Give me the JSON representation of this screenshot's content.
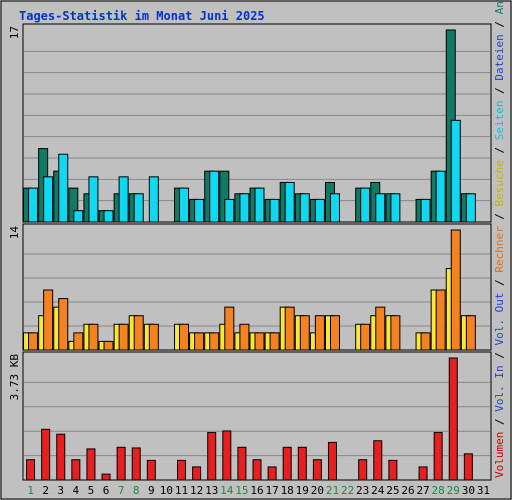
{
  "title": "Tages-Statistik im Monat Juni 2025",
  "colors": {
    "background": "#c0c0c0",
    "grid": "#888888",
    "anfragen": "#117a64",
    "dateien": "#10d8f0",
    "besuche": "#f6e835",
    "rechner": "#f48220",
    "volumen": "#e62020",
    "title": "#0033cc",
    "weekend": "#1a8a40",
    "weekday": "#000000"
  },
  "right_legend": {
    "items": [
      {
        "text": "Volumen",
        "color": "#cc0000"
      },
      {
        "text": " / ",
        "color": "#000000"
      },
      {
        "text": "Vol. In",
        "color": "#2244cc"
      },
      {
        "text": " / ",
        "color": "#000000"
      },
      {
        "text": "Vol. Out",
        "color": "#2244cc"
      },
      {
        "text": " / ",
        "color": "#000000"
      },
      {
        "text": "Rechner",
        "color": "#e07010"
      },
      {
        "text": " / ",
        "color": "#000000"
      },
      {
        "text": "Besuche",
        "color": "#c8b400"
      },
      {
        "text": " / ",
        "color": "#000000"
      },
      {
        "text": "Seiten",
        "color": "#10c0e0"
      },
      {
        "text": " / ",
        "color": "#000000"
      },
      {
        "text": "Dateien",
        "color": "#2244cc"
      },
      {
        "text": " / ",
        "color": "#000000"
      },
      {
        "text": "Anfragen",
        "color": "#117a64"
      }
    ]
  },
  "chart_data": {
    "type": "bar",
    "categories": [
      "1",
      "2",
      "3",
      "4",
      "5",
      "6",
      "7",
      "8",
      "9",
      "10",
      "11",
      "12",
      "13",
      "14",
      "15",
      "16",
      "17",
      "18",
      "19",
      "20",
      "21",
      "22",
      "23",
      "24",
      "25",
      "26",
      "27",
      "28",
      "29",
      "30",
      "31"
    ],
    "weekend_days": [
      "1",
      "7",
      "8",
      "14",
      "15",
      "21",
      "22",
      "28",
      "29"
    ],
    "panels": [
      {
        "id": "top",
        "ymax_label": "17",
        "ymax": 17,
        "series": [
          {
            "name": "Anfragen",
            "color": "#117a64",
            "values": [
              3,
              6.5,
              4.5,
              3,
              2.5,
              1,
              2.5,
              2.5,
              0,
              0,
              3,
              2,
              4.5,
              4.5,
              2.5,
              3,
              2,
              3.5,
              2.5,
              2,
              3.5,
              0,
              3,
              3.5,
              2.5,
              0,
              2,
              4.5,
              17,
              2.5,
              0
            ]
          },
          {
            "name": "Dateien",
            "color": "#10d8f0",
            "values": [
              3,
              4,
              6,
              1,
              4,
              1,
              4,
              2.5,
              4,
              0,
              3,
              2,
              4.5,
              2,
              2.5,
              3,
              2,
              3.5,
              2.5,
              2,
              2.5,
              0,
              3,
              2.5,
              2.5,
              0,
              2,
              4.5,
              9,
              2.5,
              0
            ]
          }
        ]
      },
      {
        "id": "middle",
        "ymax_label": "14",
        "ymax": 14,
        "series": [
          {
            "name": "Besuche",
            "color": "#f6e835",
            "values": [
              2,
              4,
              5,
              1,
              3,
              1,
              3,
              4,
              3,
              0,
              3,
              2,
              2,
              3,
              2,
              2,
              2,
              5,
              4,
              2,
              4,
              0,
              3,
              4,
              4,
              0,
              2,
              7,
              9.5,
              4,
              0
            ]
          },
          {
            "name": "Rechner",
            "color": "#f48220",
            "values": [
              2,
              7,
              6,
              2,
              3,
              1,
              3,
              4,
              3,
              0,
              3,
              2,
              2,
              5,
              3,
              2,
              2,
              5,
              4,
              4,
              4,
              0,
              3,
              5,
              4,
              0,
              2,
              7,
              14,
              4,
              0
            ]
          }
        ]
      },
      {
        "id": "bottom",
        "ymax_label": "3.73 KB",
        "ymax": 3.73,
        "series": [
          {
            "name": "Volumen",
            "color": "#e62020",
            "values": [
              0.62,
              1.55,
              1.4,
              0.62,
              0.95,
              0.18,
              1.0,
              0.98,
              0.6,
              0,
              0.6,
              0.4,
              1.45,
              1.5,
              1.0,
              0.62,
              0.4,
              1.0,
              1.0,
              0.62,
              1.15,
              0,
              0.62,
              1.2,
              0.6,
              0,
              0.4,
              1.45,
              3.73,
              0.8,
              0
            ]
          }
        ]
      }
    ],
    "grid": true
  }
}
